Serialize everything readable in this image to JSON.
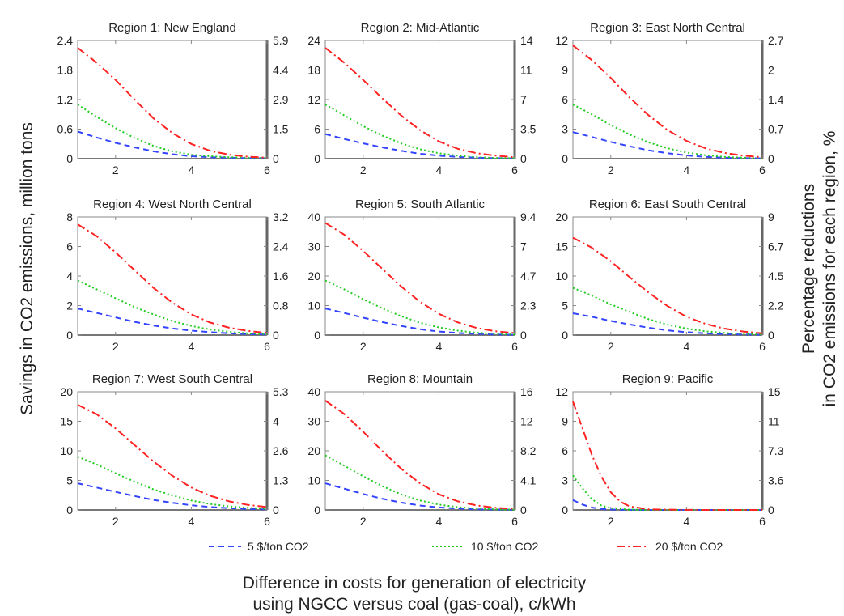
{
  "figure": {
    "ylabel_left": "Savings in CO2 emissions, million tons",
    "ylabel_right_line1": "Percentage reductions",
    "ylabel_right_line2": "in CO2 emissions for each region, %",
    "xlabel_line1": "Difference in costs for generation of electricity",
    "xlabel_line2": "using NGCC versus coal (gas-coal), c/kWh"
  },
  "legend": {
    "placement": "bottom",
    "items": [
      {
        "label": "5 $/ton CO2",
        "color": "#3344ff",
        "style": "dashed"
      },
      {
        "label": "10 $/ton CO2",
        "color": "#22cc22",
        "style": "dotted"
      },
      {
        "label": "20 $/ton CO2",
        "color": "#ff2222",
        "style": "dashdot"
      }
    ]
  },
  "chart_data": [
    {
      "type": "line",
      "title": "Region 1: New England",
      "xticks": [
        "2",
        "4",
        "6"
      ],
      "xlim": [
        1,
        6
      ],
      "yticks": [
        "0",
        "0.6",
        "1.2",
        "1.8",
        "2.4"
      ],
      "ylim": [
        0,
        2.4
      ],
      "y2ticks": [
        "0",
        "1.5",
        "2.9",
        "4.4",
        "5.9"
      ],
      "series": [
        {
          "name": "5 $/ton CO2",
          "x": [
            1,
            1.5,
            2,
            2.5,
            3,
            3.5,
            4,
            4.5,
            5,
            5.5,
            6
          ],
          "values": [
            0.55,
            0.43,
            0.32,
            0.23,
            0.15,
            0.09,
            0.05,
            0.03,
            0.02,
            0.01,
            0.01
          ]
        },
        {
          "name": "10 $/ton CO2",
          "x": [
            1,
            1.5,
            2,
            2.5,
            3,
            3.5,
            4,
            4.5,
            5,
            5.5,
            6
          ],
          "values": [
            1.1,
            0.85,
            0.62,
            0.42,
            0.26,
            0.15,
            0.08,
            0.05,
            0.03,
            0.02,
            0.01
          ]
        },
        {
          "name": "20 $/ton CO2",
          "x": [
            1,
            1.5,
            2,
            2.5,
            3,
            3.5,
            4,
            4.5,
            5,
            5.5,
            6
          ],
          "values": [
            2.25,
            1.95,
            1.6,
            1.2,
            0.82,
            0.52,
            0.3,
            0.16,
            0.08,
            0.04,
            0.02
          ]
        }
      ]
    },
    {
      "type": "line",
      "title": "Region 2: Mid-Atlantic",
      "xticks": [
        "2",
        "4",
        "6"
      ],
      "xlim": [
        1,
        6
      ],
      "yticks": [
        "0",
        "6",
        "12",
        "18",
        "24"
      ],
      "ylim": [
        0,
        24
      ],
      "y2ticks": [
        "0",
        "3.5",
        "7",
        "11",
        "14"
      ],
      "series": [
        {
          "name": "5 $/ton CO2",
          "x": [
            1,
            1.5,
            2,
            2.5,
            3,
            3.5,
            4,
            4.5,
            5,
            5.5,
            6
          ],
          "values": [
            5,
            4,
            3.1,
            2.3,
            1.6,
            1.0,
            0.6,
            0.35,
            0.2,
            0.1,
            0.05
          ]
        },
        {
          "name": "10 $/ton CO2",
          "x": [
            1,
            1.5,
            2,
            2.5,
            3,
            3.5,
            4,
            4.5,
            5,
            5.5,
            6
          ],
          "values": [
            11,
            8.8,
            6.6,
            4.7,
            3.1,
            1.9,
            1.1,
            0.6,
            0.3,
            0.15,
            0.08
          ]
        },
        {
          "name": "20 $/ton CO2",
          "x": [
            1,
            1.5,
            2,
            2.5,
            3,
            3.5,
            4,
            4.5,
            5,
            5.5,
            6
          ],
          "values": [
            22.5,
            19.5,
            16,
            12.3,
            8.8,
            5.8,
            3.5,
            2,
            1.1,
            0.6,
            0.3
          ]
        }
      ]
    },
    {
      "type": "line",
      "title": "Region 3: East North Central",
      "xticks": [
        "2",
        "4",
        "6"
      ],
      "xlim": [
        1,
        6
      ],
      "yticks": [
        "0",
        "3",
        "6",
        "9",
        "12"
      ],
      "ylim": [
        0,
        12
      ],
      "y2ticks": [
        "0",
        "0.7",
        "1.4",
        "2",
        "2.7"
      ],
      "series": [
        {
          "name": "5 $/ton CO2",
          "x": [
            1,
            1.5,
            2,
            2.5,
            3,
            3.5,
            4,
            4.5,
            5,
            5.5,
            6
          ],
          "values": [
            2.7,
            2.2,
            1.7,
            1.25,
            0.85,
            0.55,
            0.33,
            0.18,
            0.1,
            0.05,
            0.03
          ]
        },
        {
          "name": "10 $/ton CO2",
          "x": [
            1,
            1.5,
            2,
            2.5,
            3,
            3.5,
            4,
            4.5,
            5,
            5.5,
            6
          ],
          "values": [
            5.5,
            4.5,
            3.4,
            2.45,
            1.65,
            1.05,
            0.62,
            0.35,
            0.18,
            0.1,
            0.05
          ]
        },
        {
          "name": "20 $/ton CO2",
          "x": [
            1,
            1.5,
            2,
            2.5,
            3,
            3.5,
            4,
            4.5,
            5,
            5.5,
            6
          ],
          "values": [
            11.5,
            10,
            8.2,
            6.2,
            4.4,
            2.9,
            1.8,
            1.05,
            0.58,
            0.3,
            0.15
          ]
        }
      ]
    },
    {
      "type": "line",
      "title": "Region 4: West North Central",
      "xticks": [
        "2",
        "4",
        "6"
      ],
      "xlim": [
        1,
        6
      ],
      "yticks": [
        "0",
        "2",
        "4",
        "6",
        "8"
      ],
      "ylim": [
        0,
        8
      ],
      "y2ticks": [
        "0",
        "0.8",
        "1.6",
        "2.4",
        "3.2"
      ],
      "series": [
        {
          "name": "5 $/ton CO2",
          "x": [
            1,
            1.5,
            2,
            2.5,
            3,
            3.5,
            4,
            4.5,
            5,
            5.5,
            6
          ],
          "values": [
            1.8,
            1.5,
            1.2,
            0.9,
            0.65,
            0.45,
            0.3,
            0.2,
            0.12,
            0.07,
            0.04
          ]
        },
        {
          "name": "10 $/ton CO2",
          "x": [
            1,
            1.5,
            2,
            2.5,
            3,
            3.5,
            4,
            4.5,
            5,
            5.5,
            6
          ],
          "values": [
            3.7,
            3.1,
            2.5,
            1.9,
            1.4,
            0.95,
            0.62,
            0.38,
            0.22,
            0.12,
            0.07
          ]
        },
        {
          "name": "20 $/ton CO2",
          "x": [
            1,
            1.5,
            2,
            2.5,
            3,
            3.5,
            4,
            4.5,
            5,
            5.5,
            6
          ],
          "values": [
            7.5,
            6.7,
            5.6,
            4.4,
            3.2,
            2.2,
            1.4,
            0.85,
            0.5,
            0.28,
            0.15
          ]
        }
      ]
    },
    {
      "type": "line",
      "title": "Region 5: South Atlantic",
      "xticks": [
        "2",
        "4",
        "6"
      ],
      "xlim": [
        1,
        6
      ],
      "yticks": [
        "0",
        "10",
        "20",
        "30",
        "40"
      ],
      "ylim": [
        0,
        40
      ],
      "y2ticks": [
        "0",
        "2.3",
        "4.7",
        "7",
        "9.4"
      ],
      "series": [
        {
          "name": "5 $/ton CO2",
          "x": [
            1,
            1.5,
            2,
            2.5,
            3,
            3.5,
            4,
            4.5,
            5,
            5.5,
            6
          ],
          "values": [
            9,
            7.5,
            5.9,
            4.4,
            3.1,
            2,
            1.2,
            0.7,
            0.4,
            0.2,
            0.1
          ]
        },
        {
          "name": "10 $/ton CO2",
          "x": [
            1,
            1.5,
            2,
            2.5,
            3,
            3.5,
            4,
            4.5,
            5,
            5.5,
            6
          ],
          "values": [
            18.5,
            15.5,
            12.2,
            9.1,
            6.4,
            4.2,
            2.6,
            1.5,
            0.8,
            0.4,
            0.2
          ]
        },
        {
          "name": "20 $/ton CO2",
          "x": [
            1,
            1.5,
            2,
            2.5,
            3,
            3.5,
            4,
            4.5,
            5,
            5.5,
            6
          ],
          "values": [
            38,
            34,
            28.5,
            22.5,
            16.5,
            11.3,
            7.2,
            4.3,
            2.4,
            1.3,
            0.7
          ]
        }
      ]
    },
    {
      "type": "line",
      "title": "Region 6: East South Central",
      "xticks": [
        "2",
        "4",
        "6"
      ],
      "xlim": [
        1,
        6
      ],
      "yticks": [
        "0",
        "5",
        "10",
        "15",
        "20"
      ],
      "ylim": [
        0,
        20
      ],
      "y2ticks": [
        "0",
        "2.2",
        "4.5",
        "6.7",
        "9"
      ],
      "series": [
        {
          "name": "5 $/ton CO2",
          "x": [
            1,
            1.5,
            2,
            2.5,
            3,
            3.5,
            4,
            4.5,
            5,
            5.5,
            6
          ],
          "values": [
            3.7,
            3.1,
            2.4,
            1.8,
            1.25,
            0.8,
            0.5,
            0.3,
            0.17,
            0.09,
            0.05
          ]
        },
        {
          "name": "10 $/ton CO2",
          "x": [
            1,
            1.5,
            2,
            2.5,
            3,
            3.5,
            4,
            4.5,
            5,
            5.5,
            6
          ],
          "values": [
            8,
            6.7,
            5.2,
            3.9,
            2.7,
            1.75,
            1.1,
            0.65,
            0.37,
            0.2,
            0.1
          ]
        },
        {
          "name": "20 $/ton CO2",
          "x": [
            1,
            1.5,
            2,
            2.5,
            3,
            3.5,
            4,
            4.5,
            5,
            5.5,
            6
          ],
          "values": [
            16.5,
            14.8,
            12.5,
            9.8,
            7.2,
            4.9,
            3.1,
            1.9,
            1.1,
            0.6,
            0.3
          ]
        }
      ]
    },
    {
      "type": "line",
      "title": "Region 7: West South Central",
      "xticks": [
        "2",
        "4",
        "6"
      ],
      "xlim": [
        1,
        6
      ],
      "yticks": [
        "0",
        "5",
        "10",
        "15",
        "20"
      ],
      "ylim": [
        0,
        20
      ],
      "y2ticks": [
        "0",
        "1.3",
        "2.6",
        "4",
        "5.3"
      ],
      "series": [
        {
          "name": "5 $/ton CO2",
          "x": [
            1,
            1.5,
            2,
            2.5,
            3,
            3.5,
            4,
            4.5,
            5,
            5.5,
            6
          ],
          "values": [
            4.5,
            3.8,
            3.05,
            2.35,
            1.7,
            1.2,
            0.8,
            0.5,
            0.3,
            0.17,
            0.1
          ]
        },
        {
          "name": "10 $/ton CO2",
          "x": [
            1,
            1.5,
            2,
            2.5,
            3,
            3.5,
            4,
            4.5,
            5,
            5.5,
            6
          ],
          "values": [
            9,
            7.7,
            6.2,
            4.8,
            3.5,
            2.45,
            1.6,
            1.0,
            0.6,
            0.35,
            0.2
          ]
        },
        {
          "name": "20 $/ton CO2",
          "x": [
            1,
            1.5,
            2,
            2.5,
            3,
            3.5,
            4,
            4.5,
            5,
            5.5,
            6
          ],
          "values": [
            17.8,
            16.2,
            13.8,
            11,
            8.2,
            5.8,
            3.8,
            2.4,
            1.45,
            0.85,
            0.5
          ]
        }
      ]
    },
    {
      "type": "line",
      "title": "Region 8: Mountain",
      "xticks": [
        "2",
        "4",
        "6"
      ],
      "xlim": [
        1,
        6
      ],
      "yticks": [
        "0",
        "10",
        "20",
        "30",
        "40"
      ],
      "ylim": [
        0,
        40
      ],
      "y2ticks": [
        "0",
        "4.1",
        "8.2",
        "12",
        "16"
      ],
      "series": [
        {
          "name": "5 $/ton CO2",
          "x": [
            1,
            1.5,
            2,
            2.5,
            3,
            3.5,
            4,
            4.5,
            5,
            5.5,
            6
          ],
          "values": [
            9,
            7.2,
            5.4,
            3.8,
            2.5,
            1.5,
            0.85,
            0.45,
            0.22,
            0.1,
            0.05
          ]
        },
        {
          "name": "10 $/ton CO2",
          "x": [
            1,
            1.5,
            2,
            2.5,
            3,
            3.5,
            4,
            4.5,
            5,
            5.5,
            6
          ],
          "values": [
            18.5,
            15,
            11.4,
            8.1,
            5.3,
            3.2,
            1.8,
            0.95,
            0.45,
            0.2,
            0.1
          ]
        },
        {
          "name": "20 $/ton CO2",
          "x": [
            1,
            1.5,
            2,
            2.5,
            3,
            3.5,
            4,
            4.5,
            5,
            5.5,
            6
          ],
          "values": [
            37,
            32.5,
            26.5,
            20,
            14,
            9,
            5.3,
            2.9,
            1.5,
            0.7,
            0.35
          ]
        }
      ]
    },
    {
      "type": "line",
      "title": "Region 9: Pacific",
      "xticks": [
        "2",
        "4",
        "6"
      ],
      "xlim": [
        1,
        6
      ],
      "yticks": [
        "0",
        "3",
        "6",
        "9",
        "12"
      ],
      "ylim": [
        0,
        12
      ],
      "y2ticks": [
        "0",
        "3.6",
        "7.3",
        "11",
        "15"
      ],
      "series": [
        {
          "name": "5 $/ton CO2",
          "x": [
            1,
            1.25,
            1.5,
            1.75,
            2,
            2.5,
            3,
            4,
            5,
            6
          ],
          "values": [
            1.0,
            0.55,
            0.25,
            0.1,
            0.04,
            0.01,
            0,
            0,
            0,
            0
          ]
        },
        {
          "name": "10 $/ton CO2",
          "x": [
            1,
            1.25,
            1.5,
            1.75,
            2,
            2.5,
            3,
            4,
            5,
            6
          ],
          "values": [
            3.5,
            2.2,
            1.1,
            0.45,
            0.16,
            0.03,
            0.01,
            0,
            0,
            0
          ]
        },
        {
          "name": "20 $/ton CO2",
          "x": [
            1,
            1.25,
            1.5,
            1.75,
            2,
            2.25,
            2.5,
            3,
            4,
            5,
            6
          ],
          "values": [
            11,
            8.3,
            5.6,
            3.4,
            1.8,
            0.85,
            0.35,
            0.06,
            0.01,
            0,
            0
          ]
        }
      ]
    }
  ]
}
